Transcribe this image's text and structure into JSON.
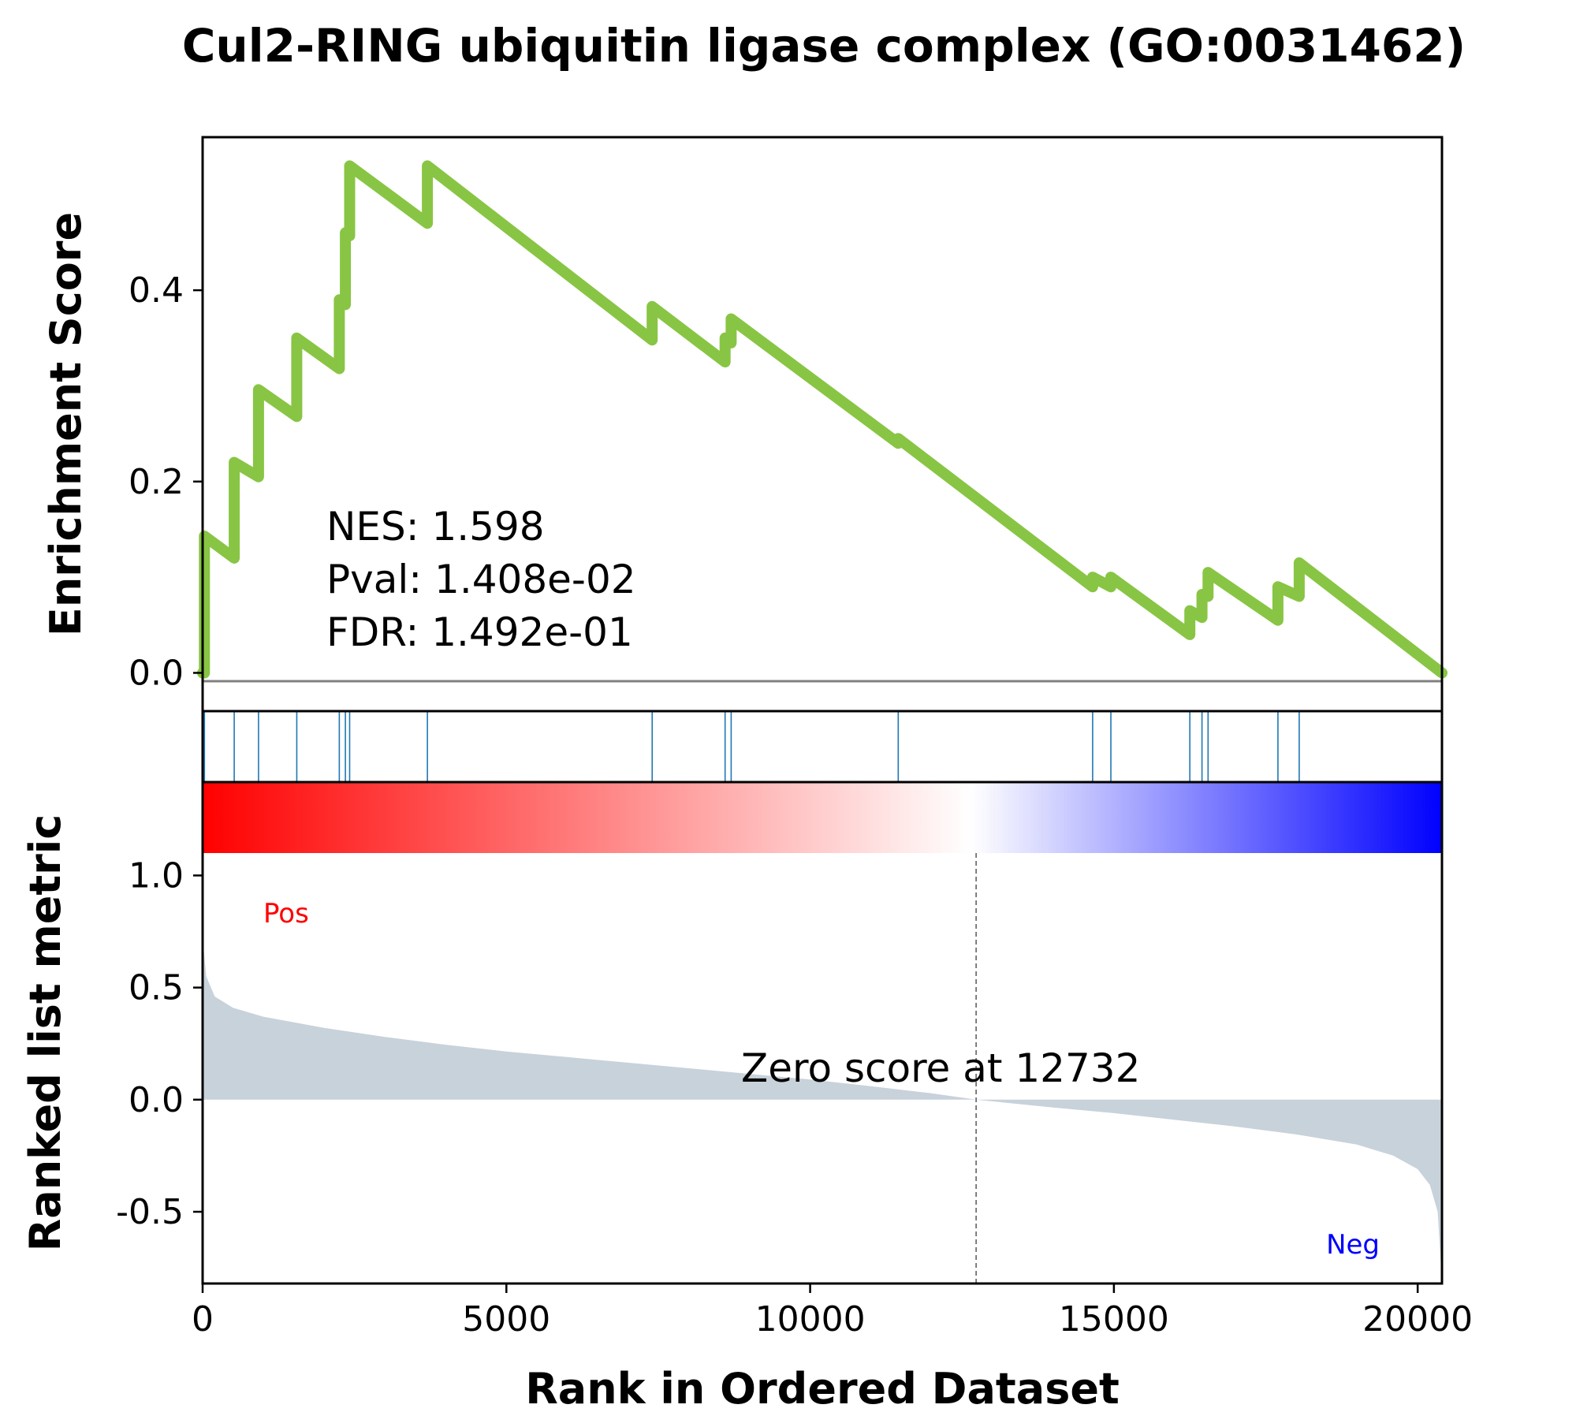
{
  "chart_data": {
    "type": "line",
    "title": "Cul2-RING ubiquitin ligase complex (GO:0031462)",
    "xlabel": "Rank in Ordered Dataset",
    "es_ylabel": "Enrichment Score",
    "rank_ylabel": "Ranked list metric",
    "xlim": [
      0,
      20400
    ],
    "x_ticks": [
      "0",
      "5000",
      "10000",
      "15000",
      "20000"
    ],
    "x_tick_values": [
      0,
      5000,
      10000,
      15000,
      20000
    ],
    "es_ylim": [
      -0.04,
      0.56
    ],
    "es_y_ticks": [
      "0.0",
      "0.2",
      "0.4"
    ],
    "es_y_tick_values": [
      0.0,
      0.2,
      0.4
    ],
    "rank_ylim": [
      -0.82,
      1.1
    ],
    "rank_y_ticks": [
      "1.0",
      "0.5",
      "0.0",
      "-0.5"
    ],
    "rank_y_tick_values": [
      1.0,
      0.5,
      0.0,
      -0.5
    ],
    "stats": {
      "nes": "NES: 1.598",
      "pval": "Pval: 1.408e-02",
      "fdr": "FDR: 1.492e-01"
    },
    "zero_score_text": "Zero score at 12732",
    "zero_score_rank": 12732,
    "pos_label": "Pos",
    "neg_label": "Neg",
    "hit_ranks": [
      30,
      520,
      920,
      1550,
      2250,
      2350,
      2420,
      3700,
      7400,
      8600,
      8700,
      11450,
      14650,
      14950,
      16250,
      16450,
      16550,
      17700,
      18050
    ],
    "running_es": [
      {
        "x": 0,
        "y": 0.0
      },
      {
        "x": 30,
        "y": 0.0
      },
      {
        "x": 30,
        "y": 0.143
      },
      {
        "x": 520,
        "y": 0.12
      },
      {
        "x": 520,
        "y": 0.22
      },
      {
        "x": 920,
        "y": 0.205
      },
      {
        "x": 920,
        "y": 0.296
      },
      {
        "x": 1550,
        "y": 0.268
      },
      {
        "x": 1550,
        "y": 0.35
      },
      {
        "x": 2250,
        "y": 0.318
      },
      {
        "x": 2250,
        "y": 0.39
      },
      {
        "x": 2350,
        "y": 0.385
      },
      {
        "x": 2350,
        "y": 0.46
      },
      {
        "x": 2420,
        "y": 0.457
      },
      {
        "x": 2420,
        "y": 0.53
      },
      {
        "x": 3700,
        "y": 0.47
      },
      {
        "x": 3700,
        "y": 0.53
      },
      {
        "x": 7400,
        "y": 0.348
      },
      {
        "x": 7400,
        "y": 0.383
      },
      {
        "x": 8600,
        "y": 0.325
      },
      {
        "x": 8600,
        "y": 0.35
      },
      {
        "x": 8700,
        "y": 0.345
      },
      {
        "x": 8700,
        "y": 0.37
      },
      {
        "x": 11450,
        "y": 0.24
      },
      {
        "x": 11450,
        "y": 0.245
      },
      {
        "x": 14650,
        "y": 0.09
      },
      {
        "x": 14650,
        "y": 0.1
      },
      {
        "x": 14950,
        "y": 0.09
      },
      {
        "x": 14950,
        "y": 0.1
      },
      {
        "x": 16250,
        "y": 0.04
      },
      {
        "x": 16250,
        "y": 0.065
      },
      {
        "x": 16450,
        "y": 0.058
      },
      {
        "x": 16450,
        "y": 0.082
      },
      {
        "x": 16550,
        "y": 0.08
      },
      {
        "x": 16550,
        "y": 0.105
      },
      {
        "x": 17700,
        "y": 0.055
      },
      {
        "x": 17700,
        "y": 0.09
      },
      {
        "x": 18050,
        "y": 0.08
      },
      {
        "x": 18050,
        "y": 0.115
      },
      {
        "x": 20400,
        "y": 0.0
      }
    ],
    "ranked_metric": [
      {
        "x": 0,
        "y": 0.72
      },
      {
        "x": 60,
        "y": 0.55
      },
      {
        "x": 200,
        "y": 0.46
      },
      {
        "x": 500,
        "y": 0.41
      },
      {
        "x": 1000,
        "y": 0.37
      },
      {
        "x": 2000,
        "y": 0.32
      },
      {
        "x": 3000,
        "y": 0.28
      },
      {
        "x": 4000,
        "y": 0.245
      },
      {
        "x": 5000,
        "y": 0.215
      },
      {
        "x": 6000,
        "y": 0.19
      },
      {
        "x": 7000,
        "y": 0.165
      },
      {
        "x": 8000,
        "y": 0.14
      },
      {
        "x": 9000,
        "y": 0.115
      },
      {
        "x": 10000,
        "y": 0.09
      },
      {
        "x": 11000,
        "y": 0.06
      },
      {
        "x": 12000,
        "y": 0.028
      },
      {
        "x": 12732,
        "y": 0.0
      },
      {
        "x": 14000,
        "y": -0.035
      },
      {
        "x": 15000,
        "y": -0.06
      },
      {
        "x": 16000,
        "y": -0.09
      },
      {
        "x": 17000,
        "y": -0.12
      },
      {
        "x": 18000,
        "y": -0.155
      },
      {
        "x": 19000,
        "y": -0.2
      },
      {
        "x": 19600,
        "y": -0.25
      },
      {
        "x": 20000,
        "y": -0.31
      },
      {
        "x": 20200,
        "y": -0.38
      },
      {
        "x": 20330,
        "y": -0.5
      },
      {
        "x": 20400,
        "y": -0.82
      }
    ],
    "colors": {
      "es_line": "#88c544",
      "hit_line": "#1f77b4",
      "metric_fill": "#c8d2da",
      "zero_line": "#808080",
      "pos_text": "#ff0000",
      "neg_text": "#0000ff",
      "gradient_start": "#ff0000",
      "gradient_mid": "#ffffff",
      "gradient_end": "#0000ff"
    }
  }
}
